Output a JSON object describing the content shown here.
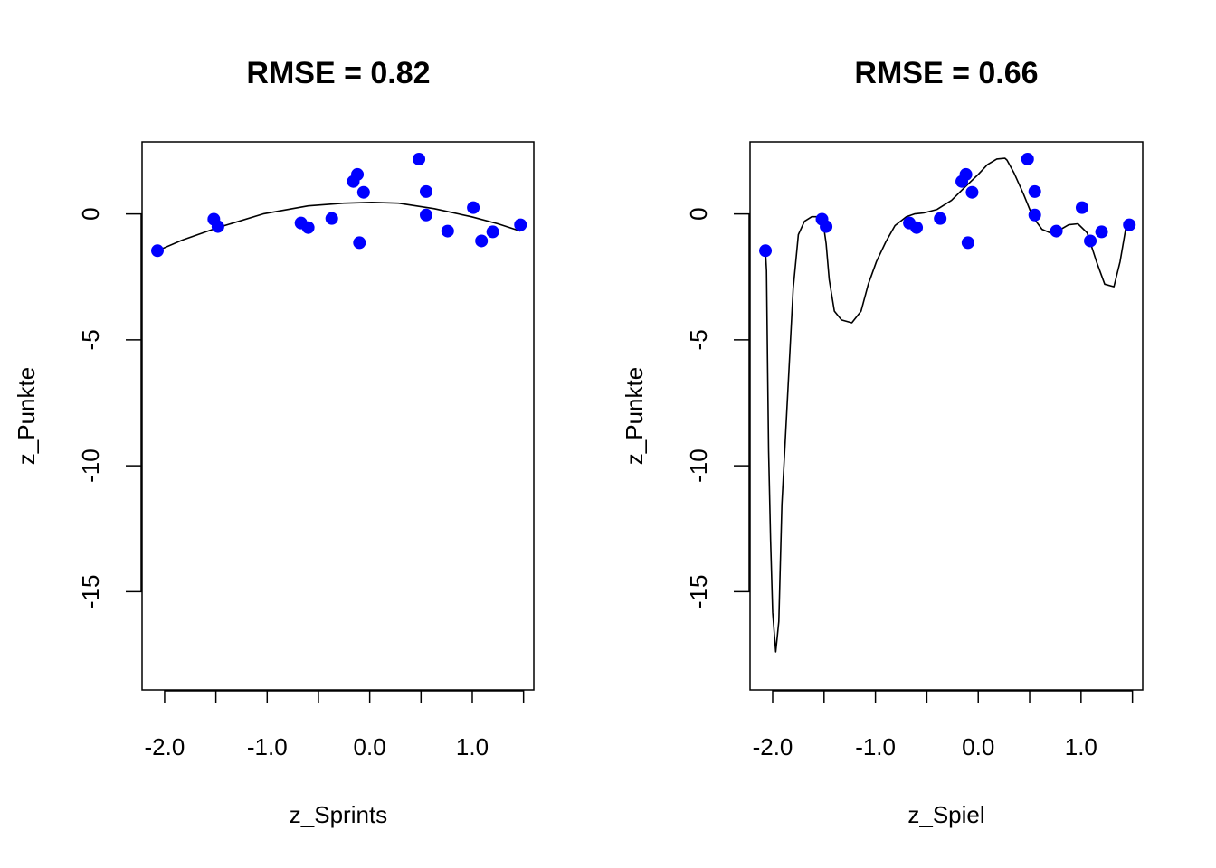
{
  "colors": {
    "points": "#0000ff",
    "line": "#000000",
    "frame": "#000000"
  },
  "chart_data": [
    {
      "type": "scatter",
      "title": "RMSE = 0.82",
      "xlabel": "z_Sprints",
      "ylabel": "z_Punkte",
      "xlim": [
        -2.22,
        1.6
      ],
      "ylim": [
        -18.9,
        2.86
      ],
      "xticks": [
        -2.0,
        -1.5,
        -1.0,
        -0.5,
        0.0,
        0.5,
        1.0,
        1.5
      ],
      "xtick_labels": [
        "-2.0",
        "",
        "-1.0",
        "",
        "0.0",
        "",
        "1.0",
        ""
      ],
      "yticks": [
        0,
        -5,
        -10,
        -15
      ],
      "ytick_labels": [
        "0",
        "-5",
        "-10",
        "-15"
      ],
      "grid": false,
      "points": {
        "x": [
          -2.07,
          -1.52,
          -1.48,
          -0.67,
          -0.6,
          -0.37,
          -0.16,
          -0.12,
          -0.1,
          -0.06,
          0.48,
          0.55,
          0.55,
          0.76,
          1.01,
          1.09,
          1.2,
          1.47
        ],
        "y": [
          -1.46,
          -0.21,
          -0.5,
          -0.36,
          -0.54,
          -0.18,
          1.29,
          1.57,
          -1.14,
          0.86,
          2.18,
          0.89,
          -0.04,
          -0.68,
          0.25,
          -1.07,
          -0.71,
          -0.43
        ]
      },
      "fit_line": {
        "name": "quadratic fit",
        "x": [
          -2.07,
          -1.83,
          -1.48,
          -1.04,
          -0.6,
          -0.25,
          0.02,
          0.28,
          0.63,
          0.99,
          1.25,
          1.47
        ],
        "y": [
          -1.46,
          -1.04,
          -0.54,
          0.0,
          0.32,
          0.43,
          0.46,
          0.43,
          0.21,
          -0.11,
          -0.39,
          -0.68
        ]
      }
    },
    {
      "type": "scatter",
      "title": "RMSE = 0.66",
      "xlabel": "z_Spiel",
      "ylabel": "z_Punkte",
      "xlim": [
        -2.22,
        1.6
      ],
      "ylim": [
        -18.9,
        2.86
      ],
      "xticks": [
        -2.0,
        -1.5,
        -1.0,
        -0.5,
        0.0,
        0.5,
        1.0,
        1.5
      ],
      "xtick_labels": [
        "-2.0",
        "",
        "-1.0",
        "",
        "0.0",
        "",
        "1.0",
        ""
      ],
      "yticks": [
        0,
        -5,
        -10,
        -15
      ],
      "ytick_labels": [
        "0",
        "-5",
        "-10",
        "-15"
      ],
      "grid": false,
      "points": {
        "x": [
          -2.07,
          -1.52,
          -1.48,
          -0.67,
          -0.6,
          -0.37,
          -0.16,
          -0.12,
          -0.1,
          -0.06,
          0.48,
          0.55,
          0.55,
          0.76,
          1.01,
          1.09,
          1.2,
          1.47
        ],
        "y": [
          -1.46,
          -0.21,
          -0.5,
          -0.36,
          -0.54,
          -0.18,
          1.29,
          1.57,
          -1.14,
          0.86,
          2.18,
          0.89,
          -0.04,
          -0.68,
          0.25,
          -1.07,
          -0.71,
          -0.43
        ]
      },
      "fit_line": {
        "name": "high-degree polynomial fit",
        "x": [
          -2.07,
          -2.06,
          -2.05,
          -2.04,
          -2.02,
          -2.0,
          -1.97,
          -1.94,
          -1.91,
          -1.85,
          -1.8,
          -1.75,
          -1.69,
          -1.62,
          -1.55,
          -1.51,
          -1.48,
          -1.45,
          -1.4,
          -1.33,
          -1.23,
          -1.14,
          -1.07,
          -0.99,
          -0.9,
          -0.81,
          -0.7,
          -0.62,
          -0.53,
          -0.4,
          -0.26,
          -0.13,
          0.0,
          0.09,
          0.18,
          0.26,
          0.28,
          0.35,
          0.44,
          0.53,
          0.62,
          0.7,
          0.79,
          0.88,
          0.97,
          1.06,
          1.15,
          1.23,
          1.32,
          1.38,
          1.44,
          1.45
        ],
        "y": [
          -1.46,
          -2.25,
          -5.82,
          -9.39,
          -12.96,
          -15.82,
          -17.39,
          -16.18,
          -11.54,
          -6.89,
          -2.96,
          -0.82,
          -0.29,
          -0.11,
          -0.11,
          -0.32,
          -1.18,
          -2.61,
          -3.86,
          -4.21,
          -4.32,
          -3.86,
          -2.79,
          -1.89,
          -1.11,
          -0.46,
          -0.11,
          0.0,
          0.04,
          0.18,
          0.54,
          1.07,
          1.57,
          1.96,
          2.18,
          2.21,
          2.14,
          1.61,
          0.79,
          -0.11,
          -0.61,
          -0.75,
          -0.64,
          -0.43,
          -0.39,
          -0.75,
          -1.89,
          -2.79,
          -2.89,
          -1.89,
          -0.46,
          -0.43
        ]
      }
    }
  ]
}
